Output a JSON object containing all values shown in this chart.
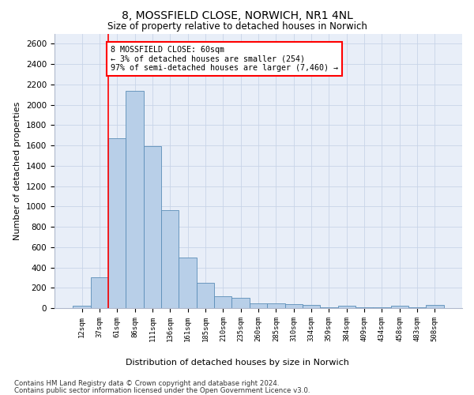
{
  "title": "8, MOSSFIELD CLOSE, NORWICH, NR1 4NL",
  "subtitle": "Size of property relative to detached houses in Norwich",
  "xlabel": "Distribution of detached houses by size in Norwich",
  "ylabel": "Number of detached properties",
  "bar_color": "#b8cfe8",
  "bar_edge_color": "#5b8db8",
  "categories": [
    "12sqm",
    "37sqm",
    "61sqm",
    "86sqm",
    "111sqm",
    "136sqm",
    "161sqm",
    "185sqm",
    "210sqm",
    "235sqm",
    "260sqm",
    "285sqm",
    "310sqm",
    "334sqm",
    "359sqm",
    "384sqm",
    "409sqm",
    "434sqm",
    "458sqm",
    "483sqm",
    "508sqm"
  ],
  "values": [
    25,
    300,
    1670,
    2140,
    1590,
    960,
    500,
    250,
    120,
    100,
    50,
    50,
    35,
    30,
    10,
    20,
    10,
    10,
    20,
    10,
    30
  ],
  "vline_index": 2,
  "annotation_text": "8 MOSSFIELD CLOSE: 60sqm\n← 3% of detached houses are smaller (254)\n97% of semi-detached houses are larger (7,460) →",
  "annotation_box_color": "white",
  "annotation_box_edge_color": "red",
  "vline_color": "red",
  "ylim": [
    0,
    2700
  ],
  "yticks": [
    0,
    200,
    400,
    600,
    800,
    1000,
    1200,
    1400,
    1600,
    1800,
    2000,
    2200,
    2400,
    2600
  ],
  "grid_color": "#c8d4e8",
  "background_color": "#e8eef8",
  "footnote1": "Contains HM Land Registry data © Crown copyright and database right 2024.",
  "footnote2": "Contains public sector information licensed under the Open Government Licence v3.0."
}
